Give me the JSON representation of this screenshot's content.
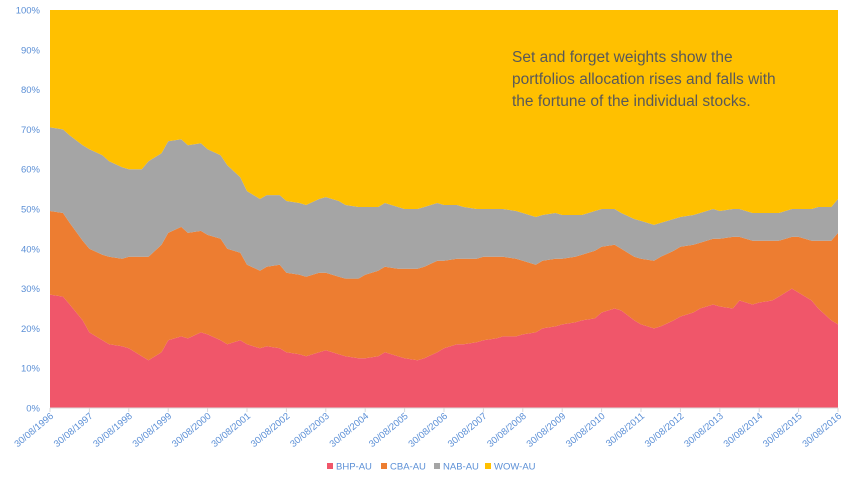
{
  "chart_data": {
    "type": "area",
    "stacked": true,
    "normalized": true,
    "title": "",
    "xlabel": "",
    "ylabel": "",
    "ylim": [
      0,
      100
    ],
    "yticks": [
      "0%",
      "10%",
      "20%",
      "30%",
      "40%",
      "50%",
      "60%",
      "70%",
      "80%",
      "90%",
      "100%"
    ],
    "x_tick_labels": [
      "30/08/1996",
      "30/08/1997",
      "30/08/1998",
      "30/08/1999",
      "30/08/2000",
      "30/08/2001",
      "30/08/2002",
      "30/08/2003",
      "30/08/2004",
      "30/08/2005",
      "30/08/2006",
      "30/08/2007",
      "30/08/2008",
      "30/08/2009",
      "30/08/2010",
      "30/08/2011",
      "30/08/2012",
      "30/08/2013",
      "30/08/2014",
      "30/08/2015",
      "30/08/2016"
    ],
    "x": [
      1996.67,
      1997.0,
      1997.17,
      1997.5,
      1997.67,
      1998.0,
      1998.17,
      1998.5,
      1998.67,
      1999.0,
      1999.17,
      1999.5,
      1999.67,
      2000.0,
      2000.17,
      2000.5,
      2000.67,
      2001.0,
      2001.17,
      2001.5,
      2001.67,
      2002.0,
      2002.17,
      2002.5,
      2002.67,
      2003.0,
      2003.17,
      2003.5,
      2003.67,
      2004.0,
      2004.17,
      2004.5,
      2004.67,
      2005.0,
      2005.17,
      2005.5,
      2005.67,
      2006.0,
      2006.17,
      2006.5,
      2006.67,
      2007.0,
      2007.17,
      2007.5,
      2007.67,
      2008.0,
      2008.17,
      2008.5,
      2008.67,
      2009.0,
      2009.17,
      2009.5,
      2009.67,
      2010.0,
      2010.17,
      2010.5,
      2010.67,
      2011.0,
      2011.17,
      2011.5,
      2011.67,
      2012.0,
      2012.17,
      2012.5,
      2012.67,
      2013.0,
      2013.17,
      2013.5,
      2013.67,
      2014.0,
      2014.17,
      2014.5,
      2014.67,
      2015.0,
      2015.17,
      2015.5,
      2015.67,
      2016.0,
      2016.17,
      2016.5,
      2016.67
    ],
    "series": [
      {
        "name": "BHP-AU",
        "color": "#f0566a",
        "values": [
          28.5,
          28,
          26,
          22,
          19,
          17,
          16,
          15.5,
          15,
          13,
          12,
          14,
          17,
          18,
          17.5,
          19,
          18.5,
          17,
          16,
          17,
          16,
          15,
          15.5,
          15,
          14,
          13.5,
          13,
          14,
          14.5,
          13.5,
          13,
          12.5,
          12.5,
          13,
          14,
          13,
          12.5,
          12,
          12.5,
          14,
          15,
          16,
          16,
          16.5,
          17,
          17.5,
          18,
          18,
          18.5,
          19,
          20,
          20.5,
          21,
          21.5,
          22,
          22.5,
          24,
          25,
          24.5,
          22,
          21,
          20,
          20.5,
          22,
          23,
          24,
          25,
          26,
          25.5,
          25,
          27,
          26,
          26.5,
          27,
          28,
          30,
          29,
          27,
          25,
          22,
          21
        ]
      },
      {
        "name": "CBA-AU",
        "color": "#ed7d31",
        "values": [
          21,
          21,
          20.5,
          20,
          21,
          21.5,
          22,
          22,
          23,
          25,
          26,
          27,
          27,
          27.5,
          26.5,
          25.5,
          25,
          25.5,
          24,
          22,
          20,
          19.5,
          20,
          21,
          20,
          20,
          20,
          20,
          19.5,
          19.5,
          19.5,
          20,
          21,
          21.5,
          21.5,
          22,
          22.5,
          23,
          23,
          23,
          22,
          21.5,
          21.5,
          21,
          21,
          20.5,
          20,
          19.5,
          18.5,
          17,
          17,
          17,
          16.5,
          16.5,
          16.5,
          17,
          16.5,
          16,
          15.5,
          16,
          16.5,
          17,
          17.5,
          17.5,
          17.5,
          17,
          16.5,
          16.5,
          17,
          18,
          16,
          16,
          15.5,
          15,
          14,
          13,
          14,
          15,
          17,
          20,
          23
        ]
      },
      {
        "name": "NAB-AU",
        "color": "#a5a5a5",
        "values": [
          21,
          21,
          22,
          24,
          25,
          25,
          24,
          23,
          22,
          22,
          24,
          23,
          23,
          22,
          22,
          22,
          21.5,
          21,
          21,
          19,
          18.5,
          18,
          18,
          17.5,
          18,
          18,
          18,
          18.5,
          19,
          19,
          18.5,
          18,
          17,
          16,
          16,
          15.5,
          15,
          15,
          15,
          14.5,
          14,
          13.5,
          13,
          12.5,
          12,
          12,
          12,
          12,
          12,
          12,
          11.5,
          11.5,
          11,
          10.5,
          10,
          10,
          9.5,
          9,
          9,
          9.5,
          9.5,
          9,
          8.5,
          8,
          7.5,
          7.5,
          7.5,
          7.5,
          7,
          7,
          7,
          7,
          7,
          7,
          7,
          7,
          7,
          8,
          8.5,
          8.5,
          8.5
        ]
      },
      {
        "name": "WOW-AU",
        "color": "#ffc000",
        "values": [
          29.5,
          30,
          31.5,
          34,
          35,
          36.5,
          38,
          39.5,
          40,
          40,
          38,
          36,
          33,
          32.5,
          34,
          33.5,
          35,
          36.5,
          39,
          42,
          45.5,
          47.5,
          46.5,
          46.5,
          48,
          48.5,
          49,
          47.5,
          47,
          48,
          49,
          49.5,
          49.5,
          49.5,
          48.5,
          49.5,
          50,
          50,
          49.5,
          48.5,
          49,
          49,
          49.5,
          50,
          50,
          50,
          50,
          50.5,
          51,
          52,
          51.5,
          51,
          51.5,
          51.5,
          51.5,
          50.5,
          50,
          50,
          51,
          52.5,
          53,
          54,
          53.5,
          52.5,
          52,
          51.5,
          51,
          50,
          50.5,
          50,
          50,
          51,
          51,
          51,
          51,
          50,
          50,
          50,
          49.5,
          49.5,
          47.5
        ]
      }
    ],
    "legend": {
      "position": "bottom",
      "entries": [
        "BHP-AU",
        "CBA-AU",
        "NAB-AU",
        "WOW-AU"
      ]
    },
    "annotation": {
      "lines": [
        "Set and forget weights show the",
        "portfolios allocation rises and falls with",
        "the fortune of the individual stocks."
      ]
    },
    "grid": false
  }
}
